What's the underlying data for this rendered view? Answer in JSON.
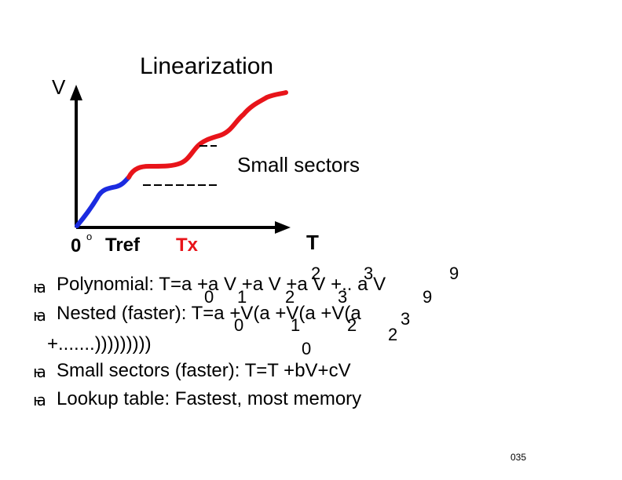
{
  "diagram": {
    "title": "Linearization",
    "v_axis_label": "V",
    "t_axis_label": "T",
    "origin_label": "0",
    "origin_degree": "o",
    "tref_label": "Tref",
    "tx_label": "Tx",
    "sectors_label": "Small sectors",
    "colors": {
      "axis": "#000000",
      "low_segment": "#1b2be0",
      "high_segment": "#e8141a",
      "tx_label": "#e8141a"
    }
  },
  "bullets": {
    "symbol": "ꙗ",
    "polynomial": {
      "text": "Polynomial: T=a +a V +a V +a V +.. a V",
      "subscripts": [
        "0",
        "1",
        "2",
        "3",
        "9"
      ],
      "superscripts": [
        "2",
        "3",
        "9"
      ]
    },
    "nested": {
      "text": "Nested (faster): T=a +V(a +V(a +V(a",
      "subscripts": [
        "0",
        "1",
        "2",
        "3"
      ],
      "superscripts": [
        "2"
      ],
      "continuation": "+.......)))))))))"
    },
    "sectors": {
      "subscript": "0",
      "text": "Small sectors (faster): T=T +bV+cV"
    },
    "lookup": {
      "text": "Lookup table:  Fastest, most memory"
    }
  },
  "page_number": "035"
}
